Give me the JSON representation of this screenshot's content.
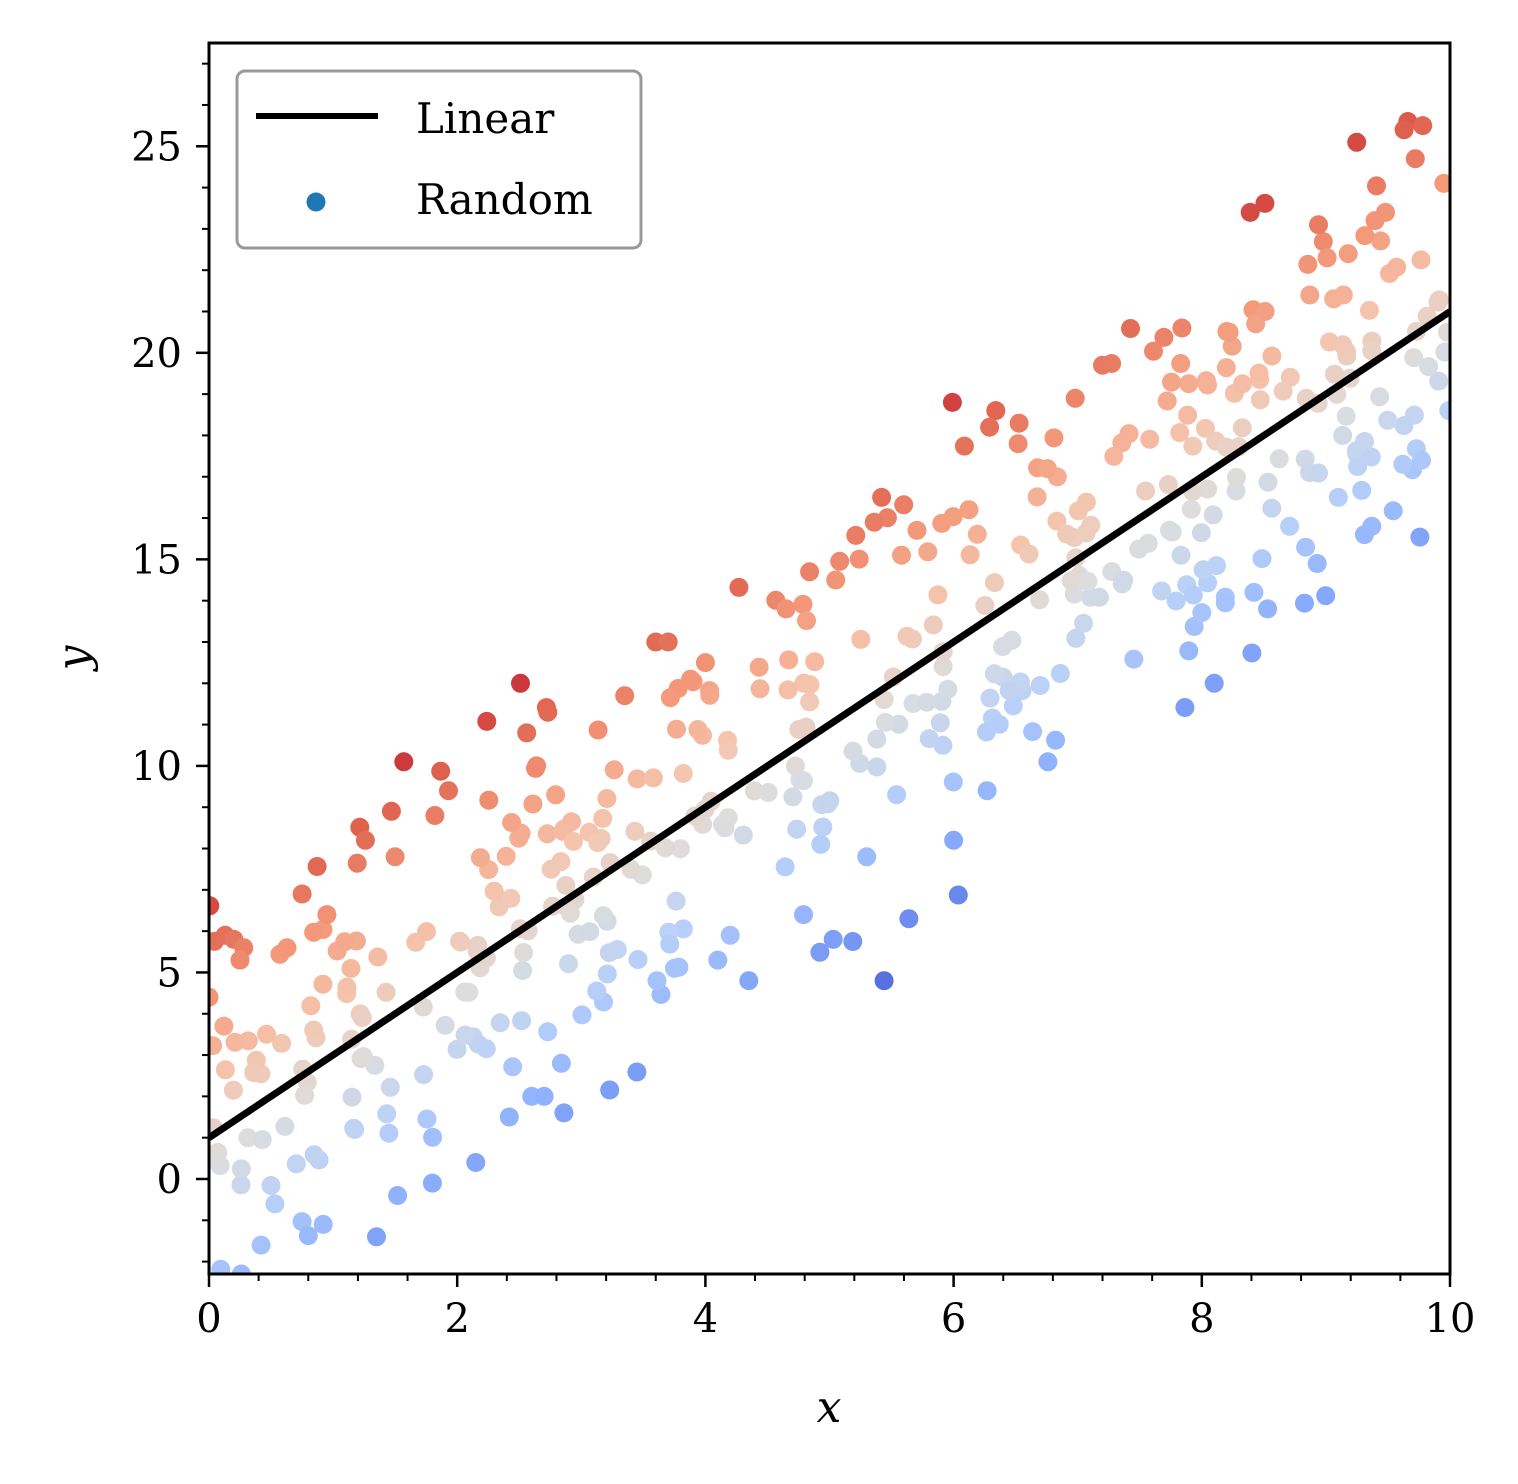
{
  "chart_data": {
    "type": "scatter",
    "title": "",
    "xlabel": "x",
    "ylabel": "y",
    "xlim": [
      0,
      10
    ],
    "ylim": [
      -2.3,
      27.5
    ],
    "xticks": [
      0,
      2,
      4,
      6,
      8,
      10
    ],
    "xtick_labels": [
      "0",
      "2",
      "4",
      "6",
      "8",
      "10"
    ],
    "yticks": [
      0,
      5,
      10,
      15,
      20,
      25
    ],
    "ytick_labels": [
      "0",
      "5",
      "10",
      "15",
      "20",
      "25"
    ],
    "grid": false,
    "legend_position": "top-left",
    "legend": [
      {
        "label": "Linear",
        "kind": "line",
        "color": "#000000"
      },
      {
        "label": "Random",
        "kind": "marker",
        "color": "#1f77b4"
      }
    ],
    "colormap": "coolwarm (colored by residual from line)",
    "line": {
      "name": "Linear",
      "slope": 2,
      "intercept": 1,
      "x": [
        0,
        10
      ],
      "y": [
        1,
        21
      ],
      "color": "#000000"
    },
    "scatter_series": {
      "name": "Random",
      "num_points": 500,
      "residual_range": [
        -8.4,
        7.1
      ],
      "approx_residual_sd": 2.2,
      "points": [
        {
          "x": 0.13,
          "y": 5.9
        },
        {
          "x": 0.2,
          "y": 5.8
        },
        {
          "x": 0.28,
          "y": 5.6
        },
        {
          "x": 0.25,
          "y": 5.3
        },
        {
          "x": 0.0,
          "y": 4.4
        },
        {
          "x": 0.12,
          "y": 3.7
        },
        {
          "x": 0.75,
          "y": 6.9
        },
        {
          "x": 0.95,
          "y": 6.4
        },
        {
          "x": 1.57,
          "y": 10.1
        },
        {
          "x": 1.47,
          "y": 8.9
        },
        {
          "x": 1.82,
          "y": 8.8
        },
        {
          "x": 1.93,
          "y": 9.4
        },
        {
          "x": 1.26,
          "y": 8.2
        },
        {
          "x": 1.5,
          "y": 7.8
        },
        {
          "x": 2.51,
          "y": 12.0
        },
        {
          "x": 2.56,
          "y": 10.8
        },
        {
          "x": 2.73,
          "y": 11.3
        },
        {
          "x": 2.64,
          "y": 10.0
        },
        {
          "x": 3.35,
          "y": 11.7
        },
        {
          "x": 3.6,
          "y": 13.0
        },
        {
          "x": 3.7,
          "y": 13.0
        },
        {
          "x": 3.88,
          "y": 12.1
        },
        {
          "x": 4.0,
          "y": 12.5
        },
        {
          "x": 4.65,
          "y": 13.8
        },
        {
          "x": 4.84,
          "y": 14.7
        },
        {
          "x": 5.05,
          "y": 14.5
        },
        {
          "x": 5.42,
          "y": 16.5
        },
        {
          "x": 5.36,
          "y": 15.9
        },
        {
          "x": 5.58,
          "y": 15.1
        },
        {
          "x": 5.99,
          "y": 18.8
        },
        {
          "x": 6.34,
          "y": 18.6
        },
        {
          "x": 6.29,
          "y": 18.2
        },
        {
          "x": 6.52,
          "y": 17.8
        },
        {
          "x": 6.98,
          "y": 18.9
        },
        {
          "x": 7.2,
          "y": 19.7
        },
        {
          "x": 7.84,
          "y": 20.6
        },
        {
          "x": 8.39,
          "y": 23.4
        },
        {
          "x": 8.94,
          "y": 23.1
        },
        {
          "x": 9.48,
          "y": 23.4
        },
        {
          "x": 9.66,
          "y": 25.6
        },
        {
          "x": 9.78,
          "y": 25.5
        },
        {
          "x": 9.63,
          "y": 25.4
        },
        {
          "x": 9.72,
          "y": 24.7
        },
        {
          "x": 9.95,
          "y": 24.1
        },
        {
          "x": 9.18,
          "y": 22.4
        },
        {
          "x": 9.01,
          "y": 22.3
        },
        {
          "x": 8.87,
          "y": 21.4
        },
        {
          "x": 8.51,
          "y": 21.0
        },
        {
          "x": 8.22,
          "y": 20.5
        },
        {
          "x": 5.44,
          "y": 4.8
        },
        {
          "x": 5.64,
          "y": 6.3
        },
        {
          "x": 5.03,
          "y": 5.8
        },
        {
          "x": 4.35,
          "y": 4.8
        },
        {
          "x": 6.0,
          "y": 8.2
        },
        {
          "x": 6.27,
          "y": 9.4
        },
        {
          "x": 6.76,
          "y": 10.1
        },
        {
          "x": 8.1,
          "y": 12.0
        },
        {
          "x": 8.42,
          "y": 14.2
        },
        {
          "x": 8.53,
          "y": 13.8
        },
        {
          "x": 1.35,
          "y": -1.4
        },
        {
          "x": 0.26,
          "y": -2.3
        },
        {
          "x": 0.42,
          "y": -1.6
        },
        {
          "x": 0.92,
          "y": -1.1
        },
        {
          "x": 2.15,
          "y": 0.4
        },
        {
          "x": 2.42,
          "y": 1.5
        },
        {
          "x": 2.86,
          "y": 1.6
        },
        {
          "x": 1.8,
          "y": -0.1
        },
        {
          "x": 1.52,
          "y": -0.4
        },
        {
          "x": 2.6,
          "y": 2.0
        },
        {
          "x": 2.7,
          "y": 2.0
        },
        {
          "x": 2.84,
          "y": 2.8
        },
        {
          "x": 3.61,
          "y": 4.8
        },
        {
          "x": 3.75,
          "y": 5.1
        },
        {
          "x": 4.1,
          "y": 5.3
        },
        {
          "x": 4.2,
          "y": 5.9
        },
        {
          "x": 4.93,
          "y": 8.1
        },
        {
          "x": 5.3,
          "y": 7.8
        },
        {
          "x": 8.93,
          "y": 14.9
        },
        {
          "x": 9.37,
          "y": 15.8
        },
        {
          "x": 9.77,
          "y": 17.4
        },
        {
          "x": 9.99,
          "y": 18.6
        },
        {
          "x": 9.62,
          "y": 17.3
        },
        {
          "x": 9.31,
          "y": 15.6
        },
        {
          "x": 9.1,
          "y": 16.5
        }
      ]
    }
  }
}
